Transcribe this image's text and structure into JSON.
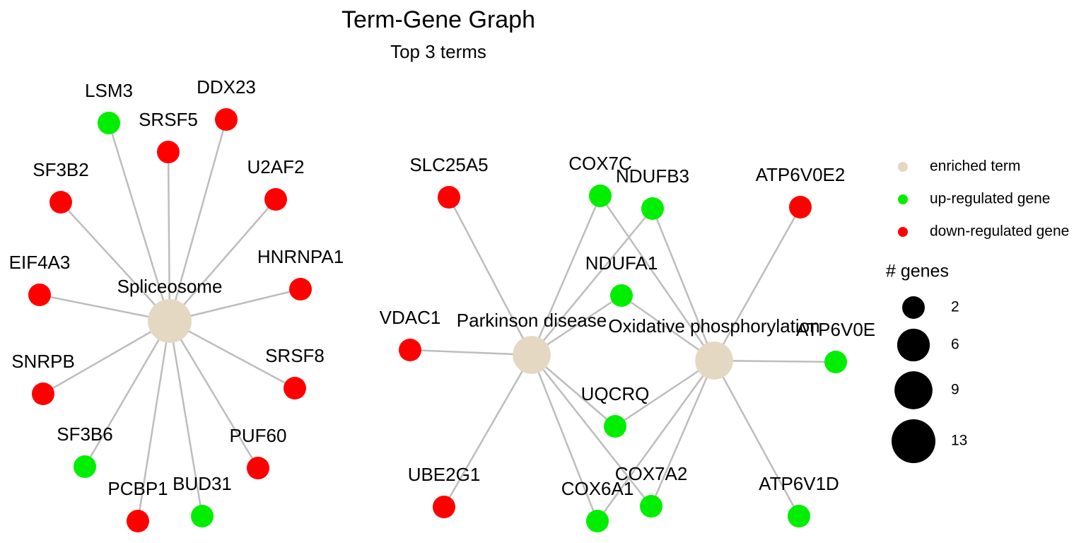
{
  "title": "Term-Gene Graph",
  "subtitle": "Top 3 terms",
  "terms": [
    {
      "label": "Spliceosome",
      "size": 13,
      "color": "#e5d8c3"
    },
    {
      "label": "Parkinson disease",
      "size": 9,
      "color": "#e5d8c3"
    },
    {
      "label": "Oxidative phosphorylation",
      "size": 9,
      "color": "#e5d8c3"
    }
  ],
  "genes": [
    {
      "label": "LSM3",
      "color": "#00ee00"
    },
    {
      "label": "DDX23",
      "color": "#ff0000"
    },
    {
      "label": "SRSF5",
      "color": "#ff0000"
    },
    {
      "label": "SF3B2",
      "color": "#ff0000"
    },
    {
      "label": "U2AF2",
      "color": "#ff0000"
    },
    {
      "label": "EIF4A3",
      "color": "#ff0000"
    },
    {
      "label": "HNRNPA1",
      "color": "#ff0000"
    },
    {
      "label": "SNRPB",
      "color": "#ff0000"
    },
    {
      "label": "SRSF8",
      "color": "#ff0000"
    },
    {
      "label": "SF3B6",
      "color": "#00ee00"
    },
    {
      "label": "PUF60",
      "color": "#ff0000"
    },
    {
      "label": "PCBP1",
      "color": "#ff0000"
    },
    {
      "label": "BUD31",
      "color": "#00ee00"
    },
    {
      "label": "SLC25A5",
      "color": "#ff0000"
    },
    {
      "label": "COX7C",
      "color": "#00ee00"
    },
    {
      "label": "NDUFB3",
      "color": "#00ee00"
    },
    {
      "label": "ATP6V0E2",
      "color": "#ff0000"
    },
    {
      "label": "NDUFA1",
      "color": "#00ee00"
    },
    {
      "label": "VDAC1",
      "color": "#ff0000"
    },
    {
      "label": "ATP6V0E",
      "color": "#00ee00"
    },
    {
      "label": "UQCRQ",
      "color": "#00ee00"
    },
    {
      "label": "UBE2G1",
      "color": "#ff0000"
    },
    {
      "label": "COX6A1",
      "color": "#00ee00"
    },
    {
      "label": "COX7A2",
      "color": "#00ee00"
    },
    {
      "label": "ATP6V1D",
      "color": "#00ee00"
    }
  ],
  "legend": {
    "items": [
      {
        "label": "enriched term",
        "color": "#e5d8c3"
      },
      {
        "label": "up-regulated gene",
        "color": "#00ee00"
      },
      {
        "label": "down-regulated gene",
        "color": "#ff0000"
      }
    ],
    "size_title": "# genes",
    "sizes": [
      2,
      6,
      9,
      13
    ]
  }
}
